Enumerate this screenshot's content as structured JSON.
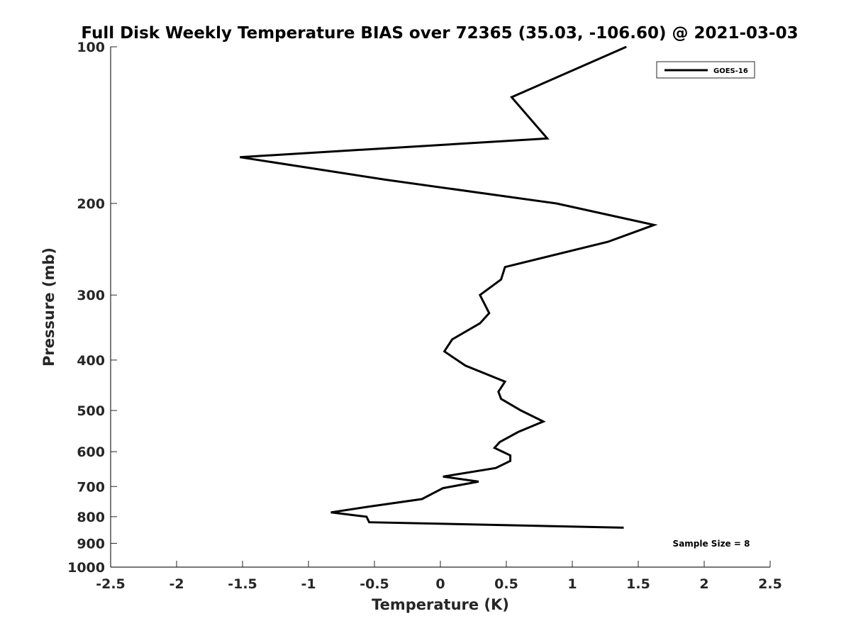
{
  "chart_data": {
    "type": "line",
    "title": "Full Disk Weekly Temperature BIAS over 72365 (35.03, -106.60) @ 2021-03-03",
    "xlabel": "Temperature (K)",
    "ylabel": "Pressure (mb)",
    "xlim": [
      -2.5,
      2.5
    ],
    "ylim": [
      100,
      1000
    ],
    "y_scale": "log",
    "y_reversed": true,
    "x_ticks": [
      "-2.5",
      "-2",
      "-1.5",
      "-1",
      "-0.5",
      "0",
      "0.5",
      "1",
      "1.5",
      "2",
      "2.5"
    ],
    "x_tick_values": [
      -2.5,
      -2,
      -1.5,
      -1,
      -0.5,
      0,
      0.5,
      1,
      1.5,
      2,
      2.5
    ],
    "y_ticks": [
      "100",
      "200",
      "300",
      "400",
      "500",
      "600",
      "700",
      "800",
      "900",
      "1000"
    ],
    "y_tick_values": [
      100,
      200,
      300,
      400,
      500,
      600,
      700,
      800,
      900,
      1000
    ],
    "grid": false,
    "legend_position": "top-right",
    "annotation": "Sample Size = 8",
    "series": [
      {
        "name": "GOES-16",
        "color": "#000000",
        "points": [
          {
            "x": 1.41,
            "p": 100
          },
          {
            "x": 0.54,
            "p": 125
          },
          {
            "x": 0.81,
            "p": 150
          },
          {
            "x": -1.52,
            "p": 163
          },
          {
            "x": -0.42,
            "p": 180
          },
          {
            "x": 0.88,
            "p": 200
          },
          {
            "x": 1.62,
            "p": 220
          },
          {
            "x": 1.27,
            "p": 237
          },
          {
            "x": 0.49,
            "p": 265
          },
          {
            "x": 0.46,
            "p": 280
          },
          {
            "x": 0.3,
            "p": 300
          },
          {
            "x": 0.37,
            "p": 325
          },
          {
            "x": 0.3,
            "p": 340
          },
          {
            "x": 0.09,
            "p": 365
          },
          {
            "x": 0.03,
            "p": 385
          },
          {
            "x": 0.19,
            "p": 410
          },
          {
            "x": 0.49,
            "p": 440
          },
          {
            "x": 0.44,
            "p": 460
          },
          {
            "x": 0.46,
            "p": 475
          },
          {
            "x": 0.61,
            "p": 500
          },
          {
            "x": 0.78,
            "p": 525
          },
          {
            "x": 0.59,
            "p": 550
          },
          {
            "x": 0.45,
            "p": 575
          },
          {
            "x": 0.41,
            "p": 590
          },
          {
            "x": 0.53,
            "p": 610
          },
          {
            "x": 0.53,
            "p": 625
          },
          {
            "x": 0.42,
            "p": 645
          },
          {
            "x": 0.02,
            "p": 670
          },
          {
            "x": 0.29,
            "p": 685
          },
          {
            "x": 0.02,
            "p": 705
          },
          {
            "x": -0.14,
            "p": 740
          },
          {
            "x": -0.54,
            "p": 765
          },
          {
            "x": -0.83,
            "p": 785
          },
          {
            "x": -0.56,
            "p": 800
          },
          {
            "x": -0.54,
            "p": 820
          },
          {
            "x": 1.39,
            "p": 840
          }
        ]
      }
    ]
  }
}
